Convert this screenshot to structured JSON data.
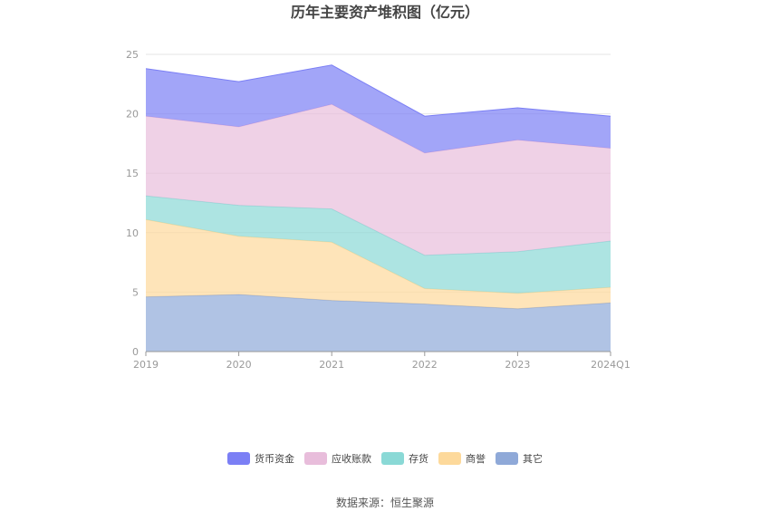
{
  "chart_data": {
    "type": "area",
    "stacked": true,
    "title": "历年主要资产堆积图（亿元）",
    "categories": [
      "2019",
      "2020",
      "2021",
      "2022",
      "2023",
      "2024Q1"
    ],
    "ylim": [
      0,
      25
    ],
    "yticks": [
      0,
      5,
      10,
      15,
      20,
      25
    ],
    "grid": true,
    "legend_position": "bottom",
    "series": [
      {
        "name": "其它",
        "color": "#8fa9d8",
        "values": [
          4.6,
          4.8,
          4.3,
          4.0,
          3.6,
          4.1
        ]
      },
      {
        "name": "商誉",
        "color": "#fdd99b",
        "values": [
          6.5,
          4.9,
          4.9,
          1.3,
          1.3,
          1.3
        ]
      },
      {
        "name": "存货",
        "color": "#8ad9d6",
        "values": [
          2.0,
          2.6,
          2.8,
          2.8,
          3.5,
          3.9
        ]
      },
      {
        "name": "应收账款",
        "color": "#e8bddb",
        "values": [
          6.7,
          6.6,
          8.8,
          8.6,
          9.4,
          7.8
        ]
      },
      {
        "name": "货币资金",
        "color": "#7b7ff5",
        "values": [
          4.0,
          3.8,
          3.3,
          3.1,
          2.7,
          2.7
        ]
      }
    ]
  },
  "legend_order": [
    "货币资金",
    "应收账款",
    "存货",
    "商誉",
    "其它"
  ],
  "source_text": "数据来源：恒生聚源"
}
